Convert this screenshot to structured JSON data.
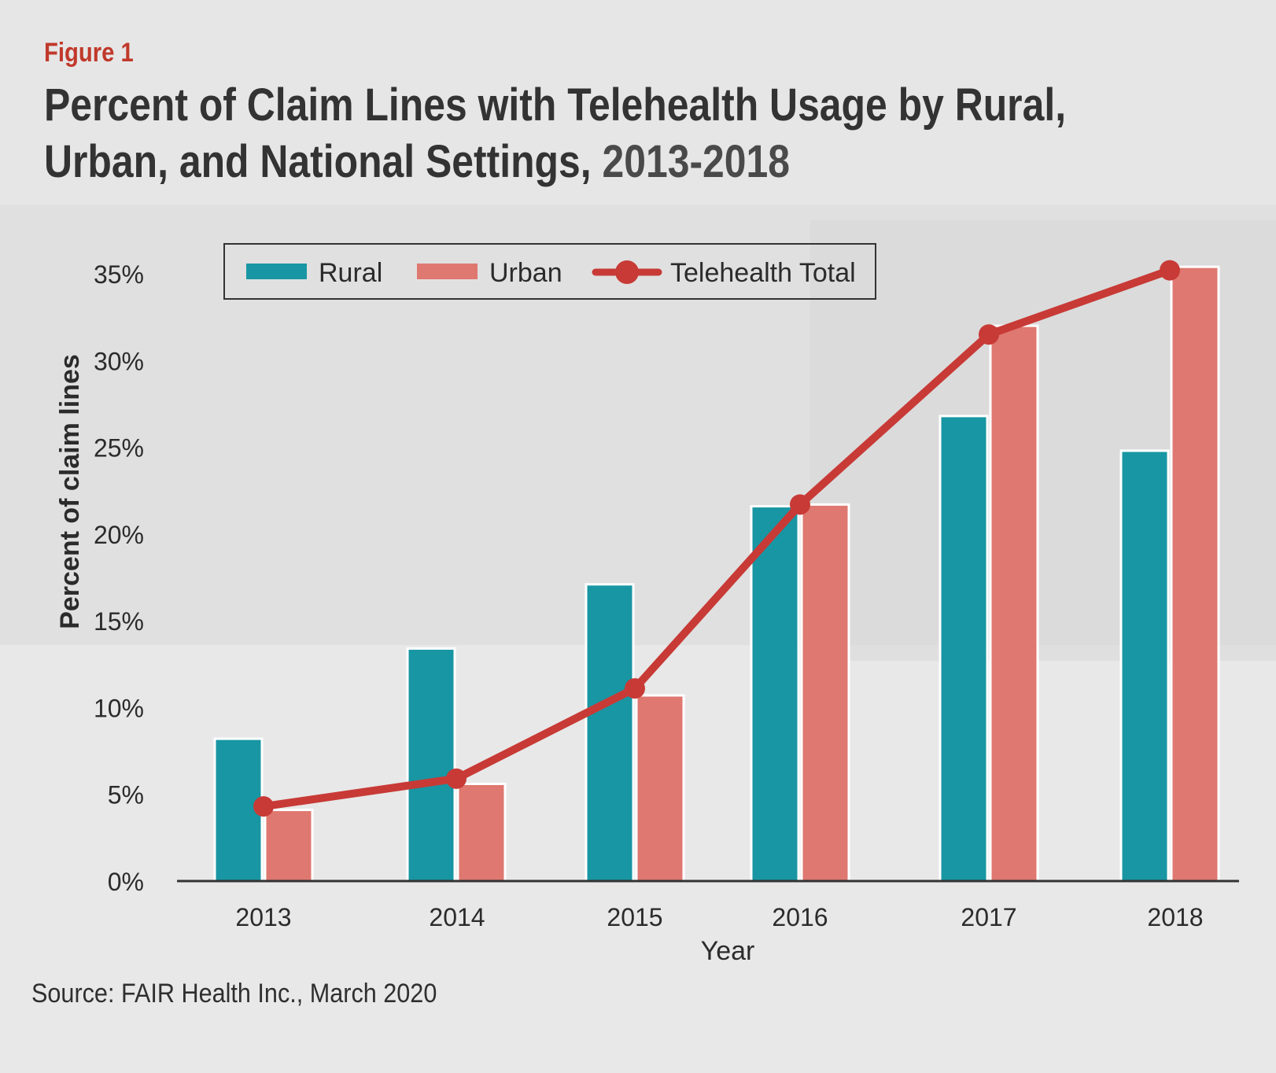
{
  "figure_label": "Figure 1",
  "title_main": "Percent of Claim Lines with Telehealth Usage by Rural, Urban, and National Settings,",
  "title_years": "2013-2018",
  "source": "Source: FAIR Health Inc., March 2020",
  "colors": {
    "rural": "#1896a3",
    "urban": "#df7870",
    "total": "#c83a36"
  },
  "chart_data": {
    "type": "bar",
    "categories": [
      "2013",
      "2014",
      "2015",
      "2016",
      "2017",
      "2018"
    ],
    "series": [
      {
        "name": "Rural",
        "type": "bar",
        "values": [
          8.2,
          13.4,
          17.1,
          21.6,
          26.8,
          24.8
        ]
      },
      {
        "name": "Urban",
        "type": "bar",
        "values": [
          4.1,
          5.6,
          10.7,
          21.7,
          32.0,
          35.4
        ]
      },
      {
        "name": "Telehealth Total",
        "type": "line",
        "values": [
          4.3,
          5.9,
          11.1,
          21.7,
          31.5,
          35.2
        ]
      }
    ],
    "xlabel": "Year",
    "ylabel": "Percent of claim lines",
    "ylim": [
      0,
      35
    ],
    "y_ticks": [
      "0%",
      "5%",
      "10%",
      "15%",
      "20%",
      "25%",
      "30%",
      "35%"
    ],
    "legend": [
      "Rural",
      "Urban",
      "Telehealth Total"
    ],
    "legend_position": "top",
    "grid": false
  }
}
